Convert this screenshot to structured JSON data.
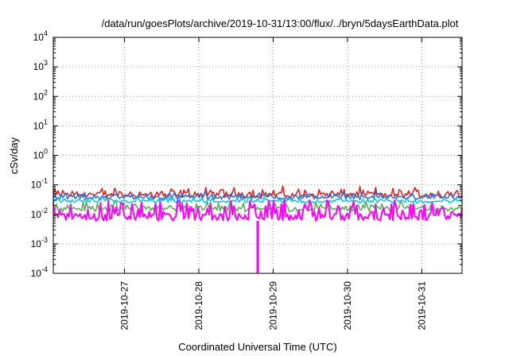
{
  "chart_data": {
    "type": "line",
    "title": "/data/run/goesPlots/archive/2019-10-31/13:00/flux/../bryn/5daysEarthData.plot",
    "xlabel": "Coordinated Universal Time (UTC)",
    "ylabel": "cSv/day",
    "yscale": "log",
    "ylim": [
      0.0001,
      10000
    ],
    "yticks": [
      {
        "value": 0.0001,
        "base": "10",
        "exp": "-4"
      },
      {
        "value": 0.001,
        "base": "10",
        "exp": "-3"
      },
      {
        "value": 0.01,
        "base": "10",
        "exp": "-2"
      },
      {
        "value": 0.1,
        "base": "10",
        "exp": "-1"
      },
      {
        "value": 1,
        "base": "10",
        "exp": "0"
      },
      {
        "value": 10,
        "base": "10",
        "exp": "1"
      },
      {
        "value": 100,
        "base": "10",
        "exp": "2"
      },
      {
        "value": 1000,
        "base": "10",
        "exp": "3"
      },
      {
        "value": 10000,
        "base": "10",
        "exp": "4"
      }
    ],
    "xlim": [
      "2019-10-26 01:00",
      "2019-10-31 13:00"
    ],
    "xticks": [
      "2019-10-27",
      "2019-10-28",
      "2019-10-29",
      "2019-10-30",
      "2019-10-31"
    ],
    "grid": true,
    "series": [
      {
        "color": "#e41a1c",
        "band": [
          0.025,
          0.09
        ]
      },
      {
        "color": "#4daf4a",
        "band": [
          0.009,
          0.03
        ]
      },
      {
        "color": "#1f6fe0",
        "band": [
          0.025,
          0.06
        ]
      },
      {
        "color": "#00c8e0",
        "band": [
          0.02,
          0.04
        ]
      },
      {
        "color": "#ff00ff",
        "band": [
          0.006,
          0.03
        ]
      }
    ],
    "annotations": [
      {
        "type": "dip",
        "series": 4,
        "x": "2019-10-28 19:00",
        "y": 0.0001
      }
    ]
  }
}
